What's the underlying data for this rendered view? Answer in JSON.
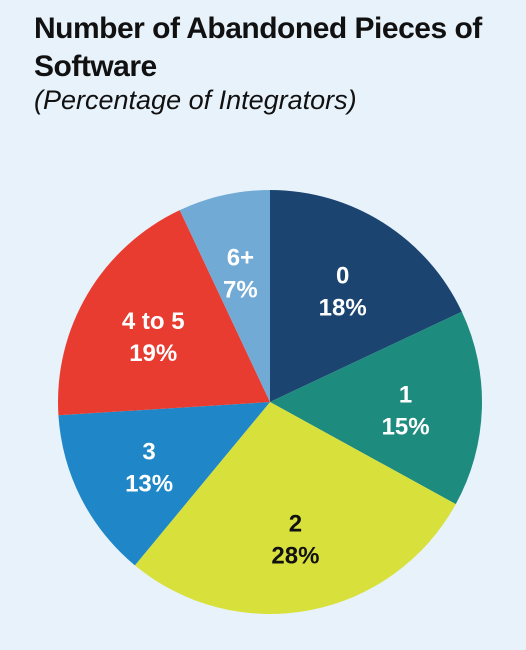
{
  "chart_data": {
    "type": "pie",
    "title": "Number of Abandoned Pieces of Software",
    "subtitle": "(Percentage of Integrators)",
    "slices": [
      {
        "label": "0",
        "value": 18,
        "display": "18%",
        "color": "#1b4570",
        "text_color": "#ffffff"
      },
      {
        "label": "1",
        "value": 15,
        "display": "15%",
        "color": "#1e8b7f",
        "text_color": "#ffffff"
      },
      {
        "label": "2",
        "value": 28,
        "display": "28%",
        "color": "#d8e03c",
        "text_color": "#111111"
      },
      {
        "label": "3",
        "value": 13,
        "display": "13%",
        "color": "#1f87c7",
        "text_color": "#ffffff"
      },
      {
        "label": "4 to 5",
        "value": 19,
        "display": "19%",
        "color": "#e83c31",
        "text_color": "#ffffff"
      },
      {
        "label": "6+",
        "value": 7,
        "display": "7%",
        "color": "#72aad6",
        "text_color": "#ffffff"
      }
    ]
  }
}
